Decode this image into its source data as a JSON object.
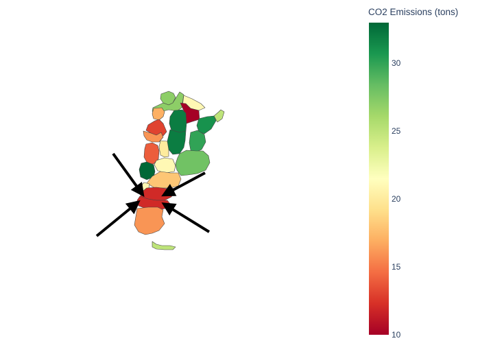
{
  "colorbar": {
    "title": "CO2 Emissions (tons)",
    "min": 10,
    "max": 33,
    "colorscale": [
      "#a50026",
      "#d73027",
      "#f46d43",
      "#fdae61",
      "#fee08b",
      "#ffffbf",
      "#d9ef8b",
      "#a6d96a",
      "#66bd63",
      "#1a9850",
      "#006837"
    ],
    "ticks": [
      {
        "value": 10,
        "label": "10"
      },
      {
        "value": 15,
        "label": "15"
      },
      {
        "value": 20,
        "label": "20"
      },
      {
        "value": 25,
        "label": "25"
      },
      {
        "value": 30,
        "label": "30"
      }
    ]
  },
  "map": {
    "type": "choropleth",
    "region": "Argentina",
    "regions": [
      {
        "name": "Jujuy",
        "value": 27
      },
      {
        "name": "Salta",
        "value": 27
      },
      {
        "name": "Formosa",
        "value": 21
      },
      {
        "name": "Chaco",
        "value": 10
      },
      {
        "name": "Misiones",
        "value": 25
      },
      {
        "name": "Tucuman",
        "value": 17
      },
      {
        "name": "Santiago del Estero",
        "value": 32
      },
      {
        "name": "Corrientes",
        "value": 31
      },
      {
        "name": "Catamarca",
        "value": 13
      },
      {
        "name": "La Rioja",
        "value": 16
      },
      {
        "name": "Santa Fe",
        "value": 32
      },
      {
        "name": "Cordoba",
        "value": 20
      },
      {
        "name": "Entre Rios",
        "value": 30
      },
      {
        "name": "San Juan",
        "value": 14
      },
      {
        "name": "San Luis",
        "value": 21
      },
      {
        "name": "Mendoza",
        "value": 33
      },
      {
        "name": "Buenos Aires",
        "value": 28
      },
      {
        "name": "La Pampa",
        "value": 18
      },
      {
        "name": "Neuquen",
        "value": 21
      },
      {
        "name": "Rio Negro",
        "value": 12
      },
      {
        "name": "Chubut",
        "value": 12
      },
      {
        "name": "Santa Cruz",
        "value": 16
      },
      {
        "name": "Tierra del Fuego",
        "value": 25
      }
    ],
    "annotations": [
      {
        "name": "arrow-1",
        "kind": "arrow"
      },
      {
        "name": "arrow-2",
        "kind": "arrow"
      },
      {
        "name": "arrow-3",
        "kind": "arrow"
      },
      {
        "name": "arrow-4",
        "kind": "arrow"
      }
    ]
  }
}
